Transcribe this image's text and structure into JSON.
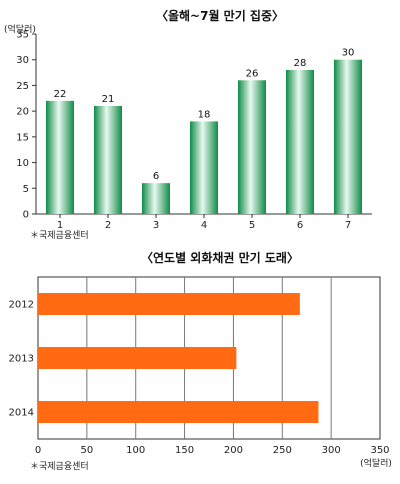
{
  "chart_data": [
    {
      "type": "bar",
      "title": "〈올해~7월 만기 집중〉",
      "unit": "(억달러)",
      "categories": [
        "1",
        "2",
        "3",
        "4",
        "5",
        "6",
        "7"
      ],
      "values": [
        22,
        21,
        6,
        18,
        26,
        28,
        30
      ],
      "value_labels": [
        "22",
        "21",
        "6",
        "18",
        "26",
        "28",
        "30"
      ],
      "ylim": [
        0,
        35
      ],
      "yticks": [
        "0",
        "5",
        "10",
        "15",
        "20",
        "25",
        "30",
        "35"
      ],
      "grid": false,
      "source": "＊국제금융센터",
      "bar_color": "#1e9e55"
    },
    {
      "type": "bar",
      "orientation": "horizontal",
      "title": "〈연도별 외화채권 만기 도래〉",
      "unit": "(억달러)",
      "categories": [
        "2012",
        "2013",
        "2014"
      ],
      "values": [
        268,
        203,
        287
      ],
      "xlim": [
        0,
        350
      ],
      "xticks": [
        "0",
        "50",
        "100",
        "150",
        "200",
        "250",
        "300",
        "350"
      ],
      "grid": true,
      "source": "＊국제금융센터",
      "bar_color": "#ff6a13"
    }
  ]
}
